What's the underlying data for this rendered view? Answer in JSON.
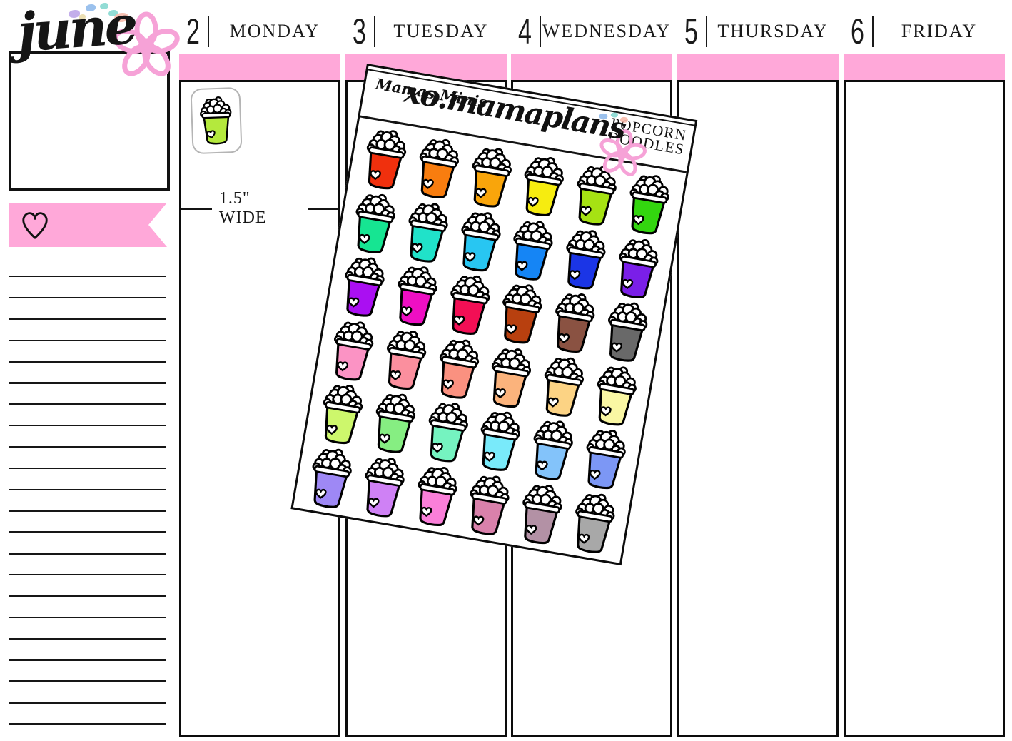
{
  "colors": {
    "accent_pink": "#ffa8d9",
    "ink": "#111111"
  },
  "month_header": {
    "month": "june"
  },
  "sidebar": {
    "line_count": 22,
    "heart_icon": "heart-outline",
    "flower_icon": "pink-flower-doodle"
  },
  "calendar": {
    "days": [
      {
        "num": "2",
        "name": "MONDAY"
      },
      {
        "num": "3",
        "name": "TUESDAY"
      },
      {
        "num": "4",
        "name": "WEDNESDAY"
      },
      {
        "num": "5",
        "name": "THURSDAY"
      },
      {
        "num": "6",
        "name": "FRIDAY"
      }
    ],
    "size_note": "1.5\" WIDE",
    "sample_sticker_color": "#b4e93d"
  },
  "sticker_sheet": {
    "brand": "Mamas Minis",
    "shop_handle": "xo.mamaplans",
    "product_line1": "POPCORN",
    "product_line2": "DOODLES",
    "sticker_colors": [
      [
        "#f0300d",
        "#f87d0f",
        "#f9a50b",
        "#f6ec10",
        "#a6e213",
        "#33d60f"
      ],
      [
        "#16e592",
        "#20e2c9",
        "#28c6f2",
        "#1585f5",
        "#1b35e6",
        "#7a1fe8"
      ],
      [
        "#aa0ff2",
        "#ee0fc3",
        "#f20f55",
        "#b8400f",
        "#8a5242",
        "#696969"
      ],
      [
        "#fb93c4",
        "#fb8f9e",
        "#fa9180",
        "#fbb37c",
        "#fcd384",
        "#faf7a3"
      ],
      [
        "#cdf76c",
        "#86ee82",
        "#75f3c0",
        "#79eafa",
        "#83c3fa",
        "#7c97f5"
      ],
      [
        "#9e88f5",
        "#cf81f5",
        "#fa7fd9",
        "#d981ab",
        "#b391a5",
        "#a8a8a8"
      ]
    ],
    "splash_colors": [
      "#b9a0e6",
      "#8ab6ea",
      "#7fd6ce",
      "#e8d9a6",
      "#f6b6a6"
    ]
  }
}
